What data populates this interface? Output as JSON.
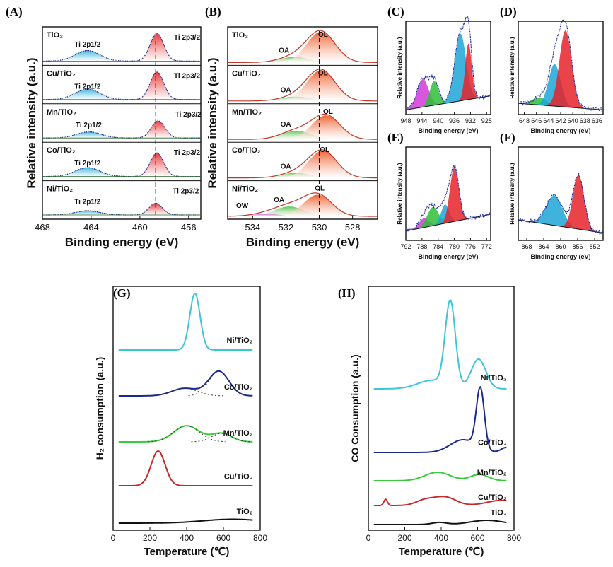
{
  "figure": {
    "panel_labels": [
      "(A)",
      "(B)",
      "(C)",
      "(D)",
      "(E)",
      "(F)",
      "(G)",
      "(H)"
    ]
  },
  "chart_data": [
    {
      "panel": "(A)",
      "type": "line",
      "title": "",
      "xlabel": "Binding energy (eV)",
      "ylabel": "Relative intensity (a.u.)",
      "xlim": [
        468,
        455
      ],
      "xticks": [
        "468",
        "464",
        "460",
        "456"
      ],
      "xtick_values": [
        468,
        464,
        460,
        456
      ],
      "dashed_line_x": 458.7,
      "series": [
        {
          "name": "TiO2",
          "label": "TiO₂",
          "peak_1_2": 464.3,
          "peak_3_2": 458.6,
          "h_1_2": 0.38,
          "h_3_2": 1.0,
          "peak_1_2_label": "Ti 2p1/2",
          "peak_3_2_label": "Ti 2p3/2"
        },
        {
          "name": "Cu/TiO2",
          "label": "Cu/TiO₂",
          "peak_1_2": 464.3,
          "peak_3_2": 458.6,
          "h_1_2": 0.38,
          "h_3_2": 1.0,
          "peak_1_2_label": "Ti 2p1/2",
          "peak_3_2_label": "Ti 2p3/2"
        },
        {
          "name": "Mn/TiO2",
          "label": "Mn/TiO₂",
          "peak_1_2": 464.2,
          "peak_3_2": 458.5,
          "h_1_2": 0.22,
          "h_3_2": 0.62,
          "peak_1_2_label": "Ti 2p1/2",
          "peak_3_2_label": "Ti 2p3/2"
        },
        {
          "name": "Co/TiO2",
          "label": "Co/TiO₂",
          "peak_1_2": 464.3,
          "peak_3_2": 458.6,
          "h_1_2": 0.32,
          "h_3_2": 0.85,
          "peak_1_2_label": "Ti 2p1/2",
          "peak_3_2_label": "Ti 2p3/2"
        },
        {
          "name": "Ni/TiO2",
          "label": "Ni/TiO₂",
          "peak_1_2": 464.3,
          "peak_3_2": 458.7,
          "h_1_2": 0.15,
          "h_3_2": 0.42,
          "peak_1_2_label": "Ti 2p1/2",
          "peak_3_2_label": "Ti 2p3/2"
        }
      ]
    },
    {
      "panel": "(B)",
      "type": "line",
      "xlabel": "Binding energy (eV)",
      "ylabel": "Relative intensity (a.u.)",
      "xlim": [
        535.5,
        526.5
      ],
      "xticks": [
        "534",
        "532",
        "530",
        "528"
      ],
      "xtick_values": [
        534,
        532,
        530,
        528
      ],
      "dashed_line_x": 530.0,
      "series": [
        {
          "name": "TiO2",
          "label": "TiO₂",
          "OL": 529.9,
          "OA": 531.5,
          "hL": 1.0,
          "hA": 0.18,
          "OL_label": "OL",
          "OA_label": "OA"
        },
        {
          "name": "Cu/TiO2",
          "label": "Cu/TiO₂",
          "OL": 529.9,
          "OA": 531.4,
          "hL": 1.0,
          "hA": 0.14,
          "OL_label": "OL",
          "OA_label": "OA"
        },
        {
          "name": "Mn/TiO2",
          "label": "Mn/TiO₂",
          "OL": 529.6,
          "OA": 531.4,
          "hL": 0.78,
          "hA": 0.28,
          "OL_label": "OL",
          "OA_label": "OA"
        },
        {
          "name": "Co/TiO2",
          "label": "Co/TiO₂",
          "OL": 529.8,
          "OA": 531.4,
          "hL": 0.88,
          "hA": 0.16,
          "OL_label": "OL",
          "OA_label": "OA"
        },
        {
          "name": "Ni/TiO2",
          "label": "Ni/TiO₂",
          "OL": 530.1,
          "OA": 531.8,
          "hL": 0.7,
          "hA": 0.32,
          "OW": 533.2,
          "hW": 0.08,
          "OL_label": "OL",
          "OA_label": "OA",
          "OW_label": "OW"
        }
      ]
    },
    {
      "panel": "(C)",
      "type": "line",
      "xlabel": "Binding energy (eV)",
      "ylabel": "Relative intensity (a.u.)",
      "xlim": [
        948,
        927
      ],
      "xticks": [
        "948",
        "944",
        "940",
        "936",
        "932",
        "928"
      ],
      "xtick_values": [
        948,
        944,
        940,
        936,
        932,
        928
      ],
      "peaks": [
        {
          "x": 943.8,
          "h": 0.3,
          "w": 1.4,
          "color": "#d23ad6"
        },
        {
          "x": 941.0,
          "h": 0.26,
          "w": 1.1,
          "color": "#2fbf3a"
        },
        {
          "x": 934.5,
          "h": 0.72,
          "w": 1.4,
          "color": "#1fa6d6"
        },
        {
          "x": 932.5,
          "h": 0.6,
          "w": 0.8,
          "color": "#e6222a"
        }
      ],
      "background": [
        0.05,
        0.2
      ]
    },
    {
      "panel": "(D)",
      "type": "line",
      "xlabel": "Binding energy (eV)",
      "ylabel": "Relative intensity (a.u.)",
      "xlim": [
        649,
        635
      ],
      "xticks": [
        "648",
        "646",
        "644",
        "642",
        "640",
        "638",
        "636"
      ],
      "xtick_values": [
        648,
        646,
        644,
        642,
        640,
        638,
        636
      ],
      "peaks": [
        {
          "x": 645.5,
          "h": 0.08,
          "w": 1.2,
          "color": "#2fbf3a"
        },
        {
          "x": 643.0,
          "h": 0.45,
          "w": 1.0,
          "color": "#1fa6d6"
        },
        {
          "x": 641.2,
          "h": 0.82,
          "w": 1.0,
          "color": "#e6222a"
        }
      ],
      "background": [
        0.12,
        0.05
      ]
    },
    {
      "panel": "(E)",
      "type": "line",
      "xlabel": "Binding energy (eV)",
      "ylabel": "Relative intensity (a.u.)",
      "xlim": [
        792,
        771
      ],
      "xticks": [
        "792",
        "788",
        "784",
        "780",
        "776",
        "772"
      ],
      "xtick_values": [
        792,
        788,
        784,
        780,
        776,
        772
      ],
      "peaks": [
        {
          "x": 787.5,
          "h": 0.1,
          "w": 1.2,
          "color": "#d23ad6"
        },
        {
          "x": 785.3,
          "h": 0.2,
          "w": 1.4,
          "color": "#2fbf3a"
        },
        {
          "x": 782.3,
          "h": 0.2,
          "w": 1.0,
          "color": "#1fa6d6"
        },
        {
          "x": 780.0,
          "h": 0.58,
          "w": 1.1,
          "color": "#e6222a"
        }
      ],
      "background": [
        0.1,
        0.28
      ]
    },
    {
      "panel": "(F)",
      "type": "line",
      "xlabel": "Binding energy (eV)",
      "ylabel": "Relative intensity (a.u.)",
      "xlim": [
        870,
        850
      ],
      "xticks": [
        "868",
        "864",
        "860",
        "856",
        "852"
      ],
      "xtick_values": [
        868,
        864,
        860,
        856,
        852
      ],
      "peaks": [
        {
          "x": 861.5,
          "h": 0.32,
          "w": 1.9,
          "color": "#1fa6d6"
        },
        {
          "x": 855.8,
          "h": 0.58,
          "w": 1.3,
          "color": "#e6222a"
        }
      ],
      "background": [
        0.22,
        0.08
      ]
    },
    {
      "panel": "(G)",
      "type": "line",
      "xlabel": "Temperature (℃)",
      "ylabel": "H₂ consumption (a.u.)",
      "xlim": [
        0,
        800
      ],
      "xticks": [
        "0",
        "200",
        "400",
        "600",
        "800"
      ],
      "xtick_values": [
        0,
        200,
        400,
        600,
        800
      ],
      "series": [
        {
          "name": "Ni/TiO2",
          "label": "Ni/TiO₂",
          "color": "#3cc6d8",
          "peaks": [
            {
              "x": 445,
              "h": 1.0,
              "w": 28
            }
          ]
        },
        {
          "name": "Co/TiO2",
          "label": "Co/TiO₂",
          "color": "#1a2a8c",
          "peaks": [
            {
              "x": 390,
              "h": 0.18,
              "w": 70
            },
            {
              "x": 575,
              "h": 0.58,
              "w": 55
            }
          ]
        },
        {
          "name": "Mn/TiO2",
          "label": "Mn/TiO₂",
          "color": "#3cc83c",
          "peaks": [
            {
              "x": 400,
              "h": 0.38,
              "w": 70
            },
            {
              "x": 590,
              "h": 0.2,
              "w": 55
            }
          ]
        },
        {
          "name": "Cu/TiO2",
          "label": "Cu/TiO₂",
          "color": "#c8282a",
          "peaks": [
            {
              "x": 245,
              "h": 0.7,
              "w": 38
            }
          ]
        },
        {
          "name": "TiO2",
          "label": "TiO₂",
          "color": "#111111",
          "peaks": [
            {
              "x": 650,
              "h": 0.22,
              "w": 160
            }
          ]
        }
      ]
    },
    {
      "panel": "(H)",
      "type": "line",
      "xlabel": "Temperature (℃)",
      "ylabel": "CO Consumption (a.u.)",
      "xlim": [
        0,
        800
      ],
      "xticks": [
        "0",
        "200",
        "400",
        "600",
        "800"
      ],
      "xtick_values": [
        0,
        200,
        400,
        600,
        800
      ],
      "series": [
        {
          "name": "Ni/TiO2",
          "label": "Ni/TiO₂",
          "color": "#3cc6d8",
          "peaks": [
            {
              "x": 450,
              "h": 1.0,
              "w": 28
            },
            {
              "x": 605,
              "h": 0.35,
              "w": 40
            },
            {
              "x": 350,
              "h": 0.1,
              "w": 80
            }
          ]
        },
        {
          "name": "Co/TiO2",
          "label": "Co/TiO₂",
          "color": "#1a2a8c",
          "peaks": [
            {
              "x": 615,
              "h": 0.95,
              "w": 22
            },
            {
              "x": 520,
              "h": 0.2,
              "w": 70
            },
            {
              "x": 760,
              "h": 0.08,
              "w": 30
            }
          ]
        },
        {
          "name": "Mn/TiO2",
          "label": "Mn/TiO₂",
          "color": "#3cc83c",
          "peaks": [
            {
              "x": 380,
              "h": 0.3,
              "w": 70
            },
            {
              "x": 610,
              "h": 0.22,
              "w": 50
            }
          ]
        },
        {
          "name": "Cu/TiO2",
          "label": "Cu/TiO₂",
          "color": "#c8282a",
          "peaks": [
            {
              "x": 95,
              "h": 0.22,
              "w": 10
            },
            {
              "x": 310,
              "h": 0.18,
              "w": 50
            },
            {
              "x": 420,
              "h": 0.3,
              "w": 60
            },
            {
              "x": 730,
              "h": 0.18,
              "w": 80
            }
          ]
        },
        {
          "name": "TiO2",
          "label": "TiO₂",
          "color": "#111111",
          "peaks": [
            {
              "x": 390,
              "h": 0.1,
              "w": 40
            },
            {
              "x": 650,
              "h": 0.2,
              "w": 90
            }
          ]
        }
      ]
    }
  ]
}
